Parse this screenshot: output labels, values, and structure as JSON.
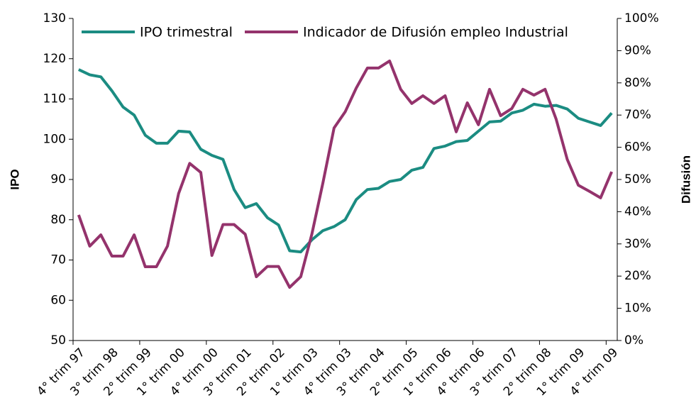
{
  "chart_data": {
    "type": "line",
    "categories": [
      "4° trim 97",
      null,
      null,
      "3° trim 98",
      null,
      null,
      "2° trim 99",
      null,
      null,
      "1° trim 00",
      null,
      null,
      "4° trim 00",
      null,
      null,
      "3° trim 01",
      null,
      null,
      "2° trim 02",
      null,
      null,
      "1° trim 03",
      null,
      null,
      "4° trim 03",
      null,
      null,
      "3° trim 04",
      null,
      null,
      "2° trim 05",
      null,
      null,
      "1° trim 06",
      null,
      null,
      "4° trim 06",
      null,
      null,
      "3° trim 07",
      null,
      null,
      "2° trim 08",
      null,
      null,
      "1° trim 09",
      null,
      null,
      "4° trim 09"
    ],
    "series": [
      {
        "name": "IPO trimestral",
        "color": "#1b8c82",
        "axis": "y",
        "values": [
          117.3,
          116,
          115.5,
          112,
          108,
          106,
          101,
          99,
          99,
          102,
          101.8,
          97.5,
          96,
          95,
          87.5,
          83,
          84,
          80.5,
          78.7,
          72.3,
          72,
          75,
          77.3,
          78.3,
          80,
          85,
          87.5,
          87.8,
          89.5,
          90,
          92.3,
          93,
          97.7,
          98.3,
          99.4,
          99.7,
          102,
          104.3,
          104.5,
          106.5,
          107.2,
          108.7,
          108.2,
          108.4,
          107.5,
          105.2,
          104.3,
          103.4,
          106.5
        ]
      },
      {
        "name": "Indicador de Difusión empleo Industrial",
        "color": "#94336c",
        "axis": "y2",
        "values": [
          39,
          29.3,
          32.8,
          26.2,
          26.2,
          32.8,
          22.9,
          22.9,
          29.3,
          45.6,
          55,
          52.2,
          26.4,
          36,
          36,
          33,
          19.8,
          23,
          23,
          16.5,
          19.8,
          33,
          49,
          66,
          71,
          78.4,
          84.6,
          84.6,
          86.8,
          78,
          73.6,
          76,
          73.6,
          76,
          64.8,
          73.8,
          67,
          78,
          69.8,
          72,
          78,
          76.2,
          78,
          68.7,
          56.2,
          48.2,
          46.3,
          44.3,
          52.4
        ]
      }
    ],
    "y_label": "IPO",
    "y2_label": "Difusión",
    "ylim": [
      50,
      130
    ],
    "yticks": [
      50,
      60,
      70,
      80,
      90,
      100,
      110,
      120,
      130
    ],
    "y2lim": [
      0,
      100
    ],
    "y2ticks": [
      {
        "value": 0,
        "label": "0%"
      },
      {
        "value": 10,
        "label": "10%"
      },
      {
        "value": 20,
        "label": "20%"
      },
      {
        "value": 30,
        "label": "30%"
      },
      {
        "value": 40,
        "label": "40%"
      },
      {
        "value": 50,
        "label": "50%"
      },
      {
        "value": 60,
        "label": "60%"
      },
      {
        "value": 70,
        "label": "70%"
      },
      {
        "value": 80,
        "label": "80%"
      },
      {
        "value": 90,
        "label": "90%"
      },
      {
        "value": 100,
        "label": "100%"
      }
    ],
    "grid": false,
    "legend": "top"
  }
}
